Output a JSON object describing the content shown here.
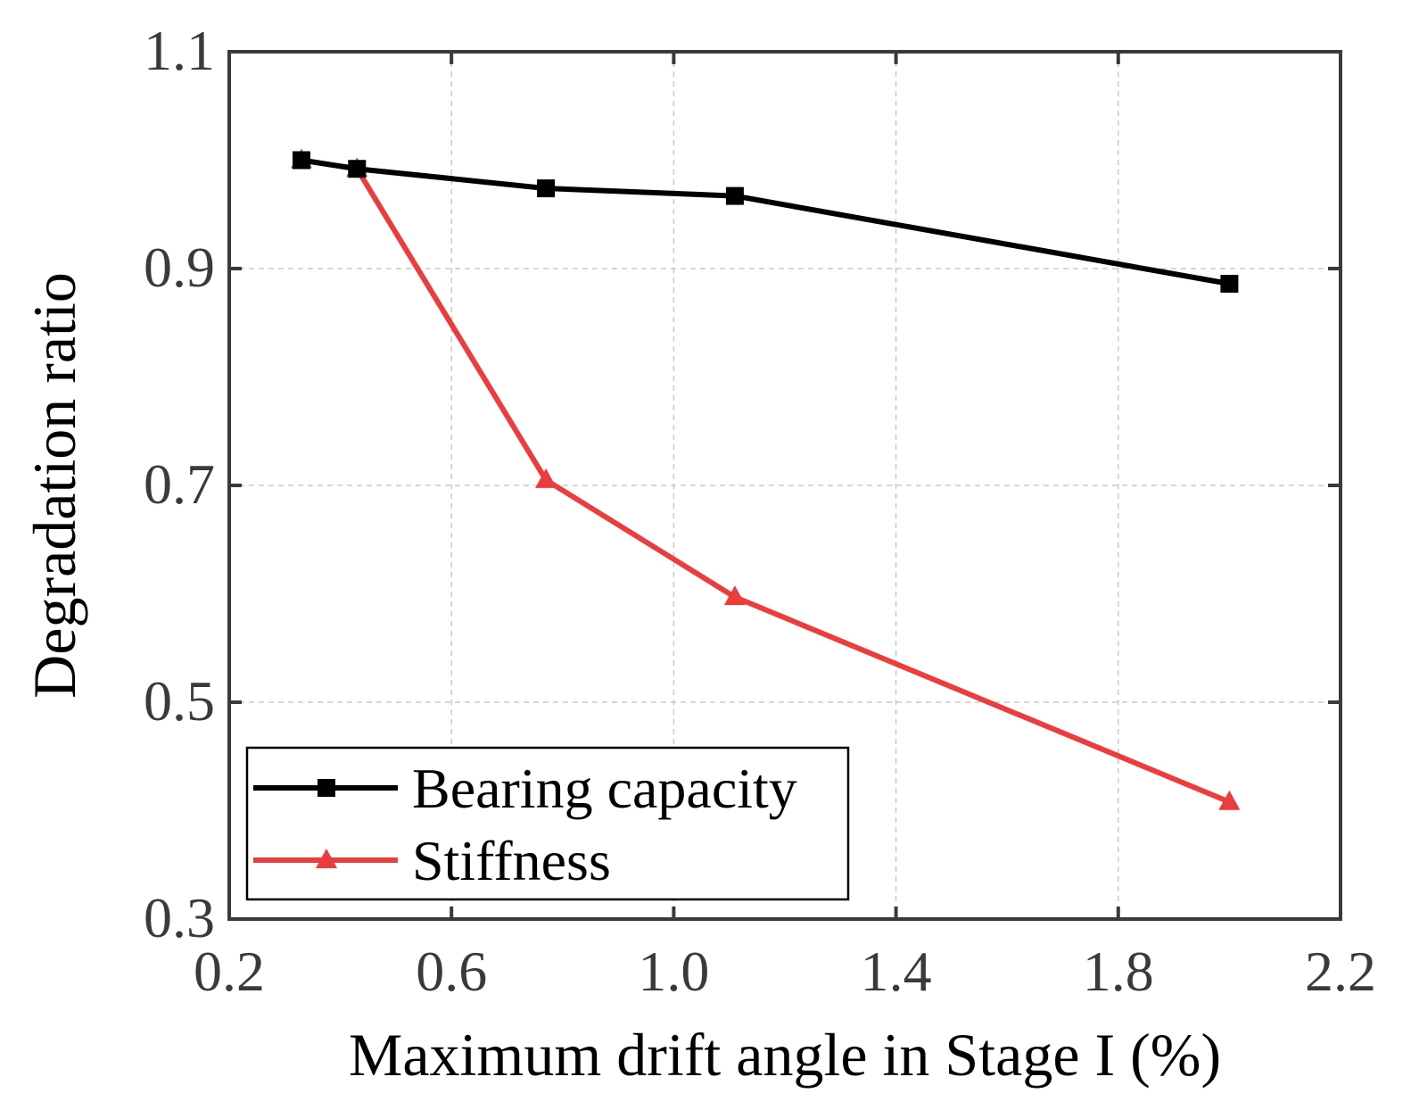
{
  "chart_data": {
    "type": "line",
    "title": "",
    "xlabel": "Maximum drift angle in Stage I (%)",
    "ylabel": "Degradation ratio",
    "xlim": [
      0.2,
      2.2
    ],
    "ylim": [
      0.3,
      1.1
    ],
    "xticks": [
      0.2,
      0.6,
      1.0,
      1.4,
      1.8,
      2.2
    ],
    "xtick_labels": [
      "0.2",
      "0.6",
      "1.0",
      "1.4",
      "1.8",
      "2.2"
    ],
    "yticks": [
      0.3,
      0.5,
      0.7,
      0.9,
      1.1
    ],
    "ytick_labels": [
      "0.3",
      "0.5",
      "0.7",
      "0.9",
      "1.1"
    ],
    "grid": true,
    "legend_position": "bottom-left",
    "series": [
      {
        "name": "Bearing capacity",
        "color": "#000000",
        "marker": "square",
        "x": [
          0.33,
          0.43,
          0.77,
          1.11,
          2.0
        ],
        "y": [
          1.0,
          0.992,
          0.974,
          0.967,
          0.886
        ]
      },
      {
        "name": "Stiffness",
        "color": "#ee3b3b",
        "marker": "triangle",
        "x": [
          0.33,
          0.43,
          0.77,
          1.11,
          2.0
        ],
        "y": [
          1.0,
          0.992,
          0.705,
          0.597,
          0.408
        ]
      }
    ]
  }
}
